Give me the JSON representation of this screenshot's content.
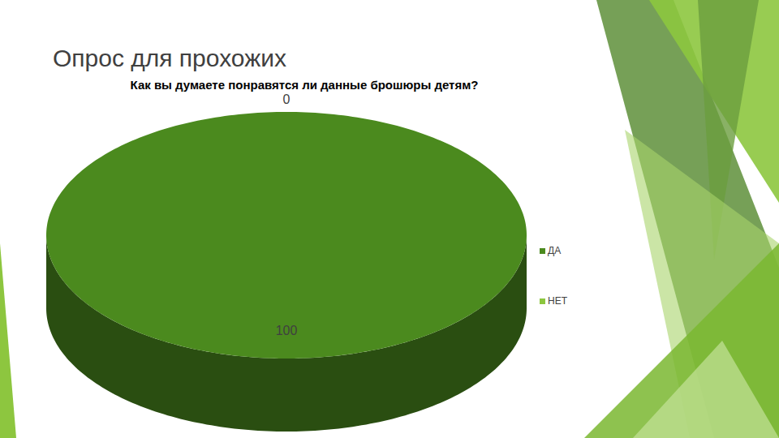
{
  "heading": "Опрос для прохожих",
  "chart_data": {
    "type": "pie",
    "title": "Как вы думаете понравятся ли данные брошюры детям?",
    "categories": [
      "ДА",
      "НЕТ"
    ],
    "values": [
      100,
      0
    ],
    "colors": [
      "#4b8a1e",
      "#8cc63f"
    ],
    "data_labels": true,
    "legend": "right"
  }
}
